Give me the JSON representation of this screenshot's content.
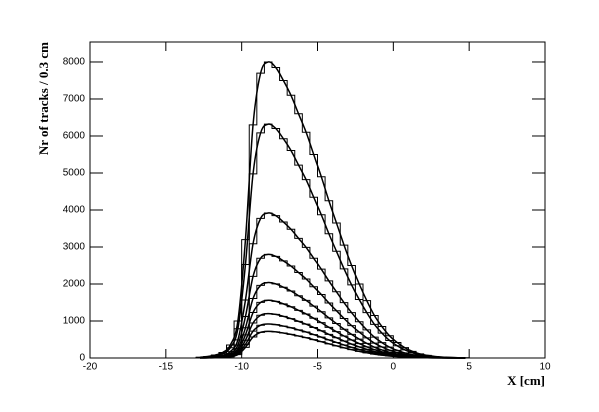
{
  "chart_data": {
    "type": "histogram",
    "xlabel": "X [cm]",
    "ylabel": "Nr of tracks / 0.3 cm",
    "xlim": [
      -20,
      10
    ],
    "xticks": [
      -20,
      -15,
      -10,
      -5,
      0,
      5,
      10
    ],
    "ylim": [
      0,
      8540
    ],
    "yticks": [
      0,
      1000,
      2000,
      3000,
      4000,
      5000,
      6000,
      7000,
      8000
    ],
    "bins": [
      -13,
      -12.5,
      -12,
      -11.5,
      -11,
      -10.5,
      -10,
      -9.5,
      -9,
      -8.5,
      -8,
      -7.5,
      -7,
      -6.5,
      -6,
      -5.5,
      -5,
      -4.5,
      -4,
      -3.5,
      -3,
      -2.5,
      -2,
      -1.5,
      -1,
      -0.5,
      0,
      0.5,
      1,
      1.5,
      2,
      2.5,
      3,
      3.5,
      4,
      4.5,
      5
    ],
    "series": [
      {
        "color": "#000000",
        "values": [
          20,
          40,
          80,
          150,
          350,
          1000,
          3200,
          6300,
          7700,
          8000,
          7850,
          7500,
          7100,
          6600,
          6100,
          5500,
          4900,
          4250,
          3650,
          3050,
          2500,
          2000,
          1550,
          1150,
          850,
          600,
          420,
          280,
          180,
          110,
          70,
          40,
          25,
          15,
          8,
          4
        ]
      },
      {
        "color": "#000000",
        "values": [
          16,
          32,
          63,
          119,
          277,
          790,
          2528,
          4977,
          6083,
          6320,
          6202,
          5925,
          5609,
          5214,
          4819,
          4345,
          3871,
          3358,
          2884,
          2410,
          1975,
          1580,
          1225,
          909,
          672,
          474,
          332,
          221,
          142,
          87,
          55,
          32,
          20,
          12,
          6,
          3
        ]
      },
      {
        "color": "#000000",
        "values": [
          10,
          20,
          39,
          74,
          172,
          490,
          1568,
          3087,
          3773,
          3920,
          3847,
          3675,
          3479,
          3234,
          2989,
          2695,
          2401,
          2083,
          1789,
          1495,
          1225,
          980,
          760,
          564,
          417,
          294,
          206,
          137,
          88,
          54,
          34,
          20,
          12,
          7,
          4,
          2
        ]
      },
      {
        "color": "#000000",
        "values": [
          7,
          14,
          28,
          53,
          123,
          350,
          1120,
          2205,
          2695,
          2800,
          2748,
          2625,
          2485,
          2310,
          2135,
          1925,
          1715,
          1488,
          1278,
          1068,
          875,
          700,
          543,
          403,
          298,
          210,
          147,
          98,
          63,
          39,
          25,
          14,
          9,
          5,
          3,
          1
        ]
      },
      {
        "color": "#000000",
        "values": [
          5,
          10,
          20,
          38,
          89,
          255,
          816,
          1607,
          1964,
          2040,
          2002,
          1913,
          1811,
          1683,
          1556,
          1403,
          1250,
          1084,
          931,
          778,
          638,
          510,
          395,
          293,
          217,
          153,
          107,
          71,
          46,
          28,
          18,
          10,
          6,
          4,
          2,
          1
        ]
      },
      {
        "color": "#000000",
        "values": [
          4,
          8,
          16,
          29,
          68,
          195,
          624,
          1229,
          1502,
          1560,
          1531,
          1463,
          1385,
          1287,
          1190,
          1073,
          956,
          829,
          712,
          595,
          488,
          390,
          302,
          224,
          166,
          117,
          82,
          55,
          35,
          21,
          14,
          8,
          5,
          3,
          2,
          1
        ]
      },
      {
        "color": "#000000",
        "values": [
          3,
          6,
          12,
          23,
          53,
          150,
          480,
          945,
          1155,
          1200,
          1178,
          1125,
          1065,
          990,
          915,
          825,
          735,
          638,
          548,
          458,
          375,
          300,
          233,
          173,
          128,
          90,
          63,
          42,
          27,
          17,
          11,
          6,
          4,
          2,
          1,
          1
        ]
      },
      {
        "color": "#000000",
        "values": [
          2,
          5,
          9,
          17,
          40,
          115,
          368,
          725,
          886,
          920,
          903,
          863,
          817,
          759,
          702,
          633,
          564,
          489,
          420,
          351,
          288,
          230,
          178,
          132,
          98,
          69,
          48,
          32,
          21,
          13,
          8,
          5,
          3,
          2,
          1,
          0
        ]
      },
      {
        "color": "#000000",
        "values": [
          2,
          4,
          7,
          14,
          32,
          90,
          288,
          567,
          693,
          720,
          707,
          675,
          639,
          594,
          549,
          495,
          441,
          383,
          329,
          275,
          225,
          180,
          140,
          104,
          77,
          54,
          38,
          25,
          16,
          10,
          6,
          4,
          2,
          1,
          1,
          0
        ]
      }
    ]
  }
}
